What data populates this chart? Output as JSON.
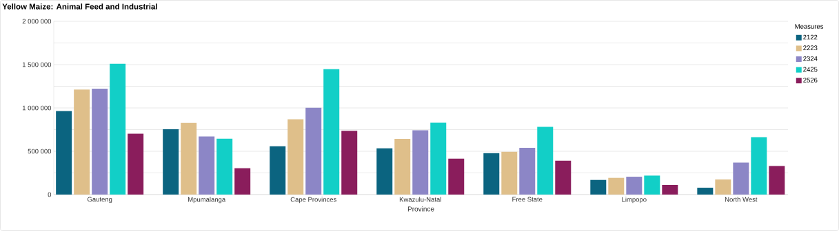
{
  "chart_data": {
    "type": "bar",
    "title": "Yellow Maize: Animal Feed and Industrial",
    "xlabel": "Province",
    "legend_title": "Measures",
    "categories": [
      "Gauteng",
      "Mpumalanga",
      "Cape Provinces",
      "Kwazulu-Natal",
      "Free State",
      "Limpopo",
      "North West"
    ],
    "series": [
      {
        "name": "2122",
        "color": "#0b6480",
        "values": [
          965000,
          753000,
          557000,
          534000,
          478000,
          169000,
          79000
        ]
      },
      {
        "name": "2223",
        "color": "#dfbf8a",
        "values": [
          1213000,
          827000,
          869000,
          642000,
          494000,
          193000,
          174000
        ]
      },
      {
        "name": "2324",
        "color": "#8c86c6",
        "values": [
          1223000,
          671000,
          1001000,
          742000,
          539000,
          206000,
          370000
        ]
      },
      {
        "name": "2425",
        "color": "#12cfc7",
        "values": [
          1509000,
          645000,
          1448000,
          830000,
          782000,
          219000,
          663000
        ]
      },
      {
        "name": "2526",
        "color": "#8a1d5c",
        "values": [
          703000,
          304000,
          737000,
          415000,
          391000,
          111000,
          330000
        ]
      }
    ],
    "ylim": [
      0,
      2000000
    ],
    "yticks": [
      0,
      {
        "value": 250000,
        "label": null
      },
      {
        "value": 500000,
        "label": "500 000"
      },
      {
        "value": 750000,
        "label": null
      },
      {
        "value": 1000000,
        "label": "1 000 000"
      },
      {
        "value": 1250000,
        "label": null
      },
      {
        "value": 1500000,
        "label": "1 500 000"
      },
      {
        "value": 1750000,
        "label": null
      },
      {
        "value": 2000000,
        "label": "2 000 000"
      }
    ],
    "grid": "y",
    "legend": "right"
  }
}
